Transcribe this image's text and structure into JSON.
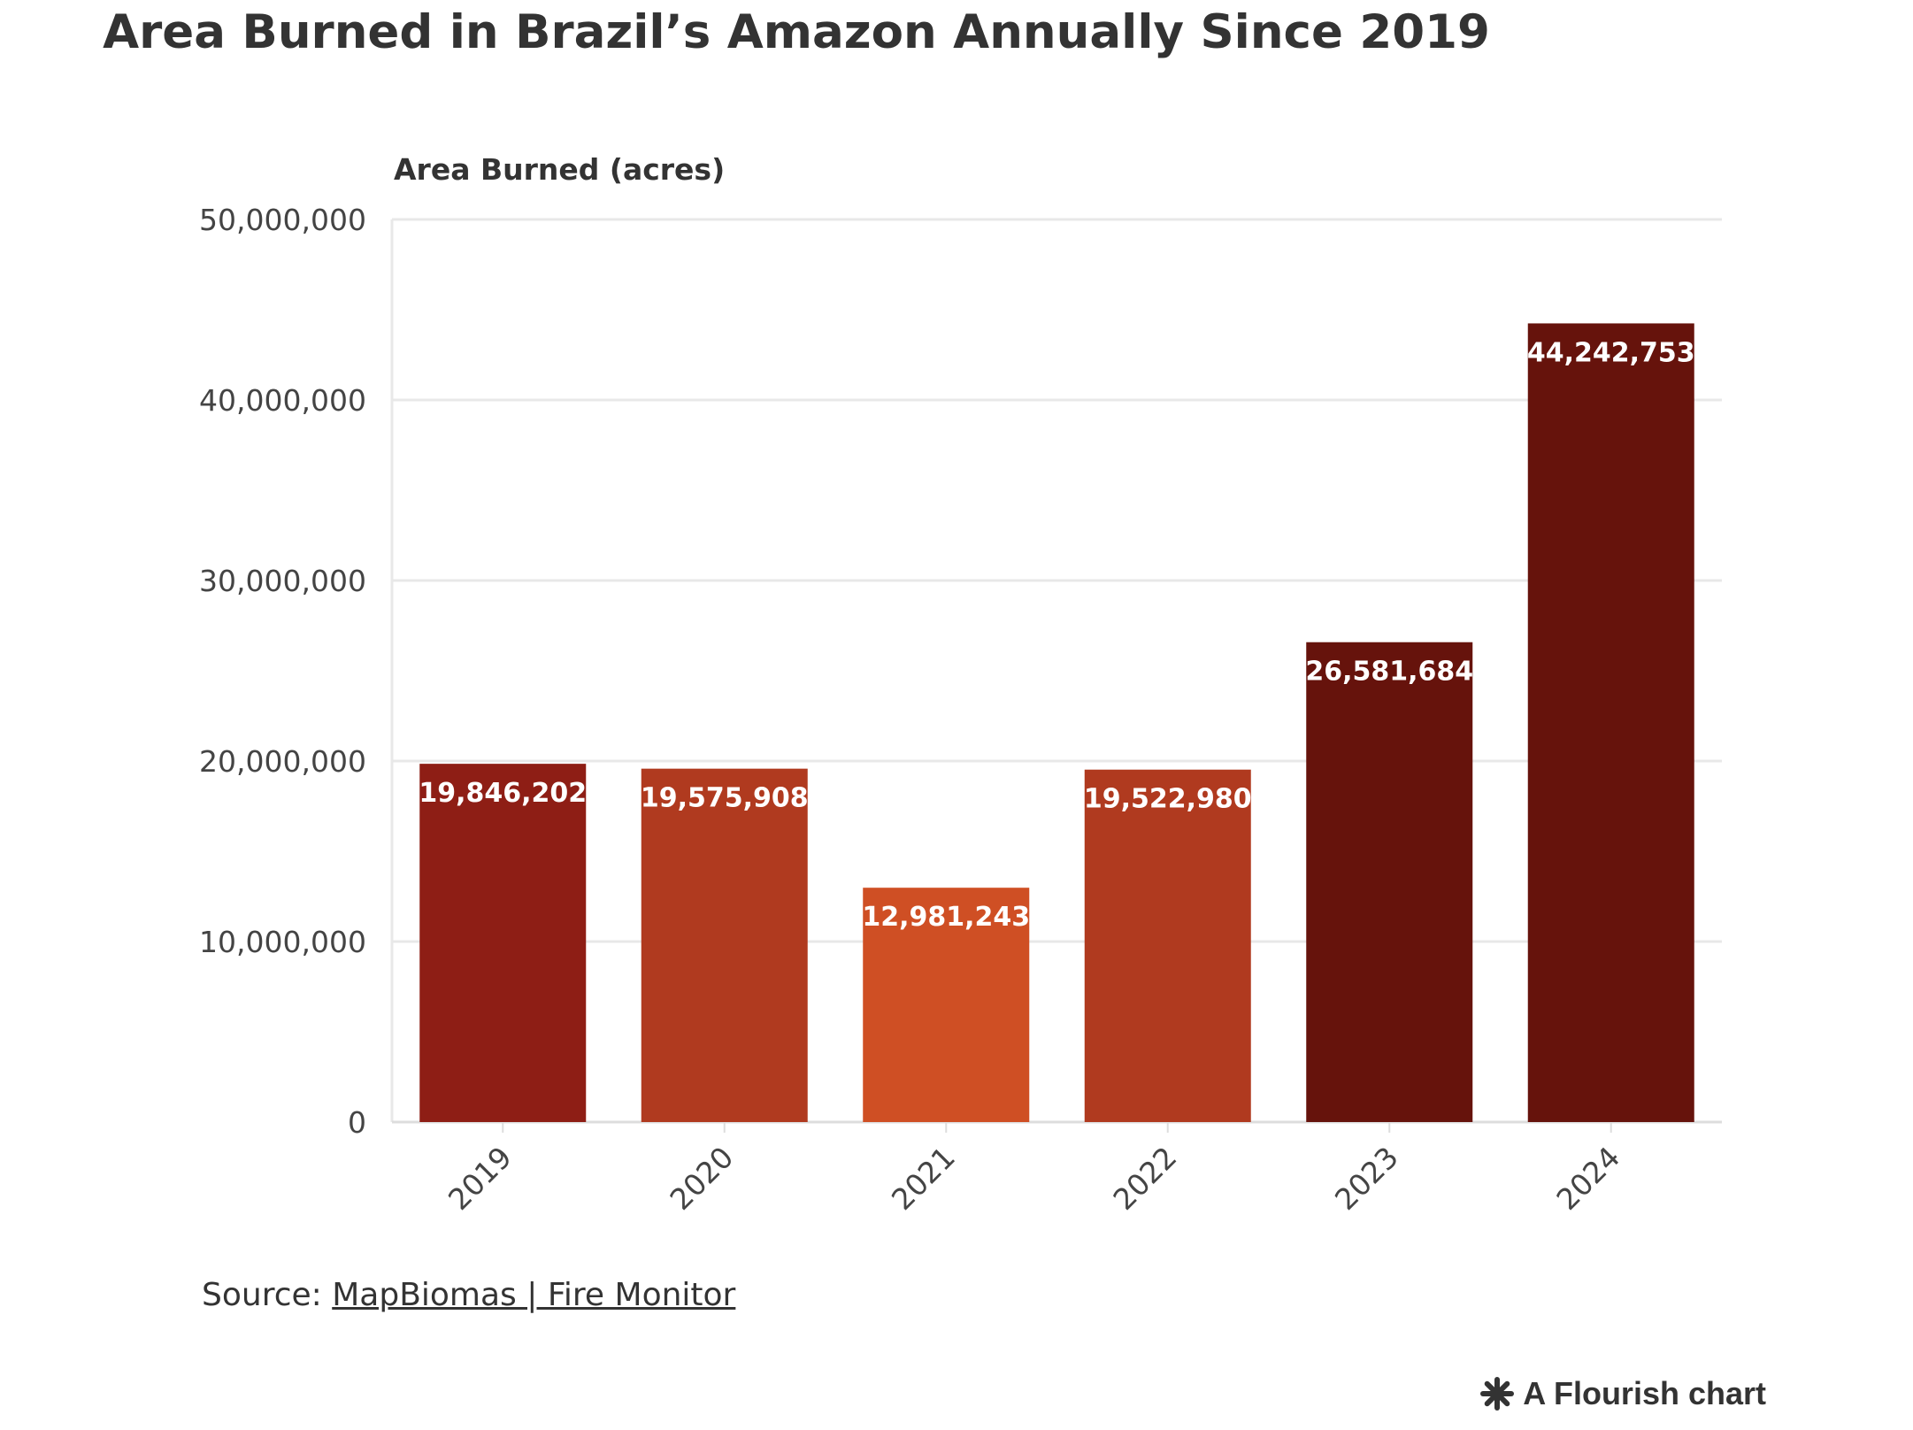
{
  "title": "Area Burned in Brazil’s Amazon Annually  Since 2019",
  "source_prefix": "Source: ",
  "source_link": "MapBiomas | Fire Monitor",
  "credit": "A Flourish chart",
  "chart_data": {
    "type": "bar",
    "title": "Area Burned in Brazil’s Amazon Annually  Since 2019",
    "xlabel": "",
    "ylabel": "Area Burned (acres)",
    "ylim": [
      0,
      50000000
    ],
    "yticks": [
      0,
      10000000,
      20000000,
      30000000,
      40000000,
      50000000
    ],
    "ytick_labels": [
      "0",
      "10,000,000",
      "20,000,000",
      "30,000,000",
      "40,000,000",
      "50,000,000"
    ],
    "categories": [
      "2019",
      "2020",
      "2021",
      "2022",
      "2023",
      "2024"
    ],
    "values": [
      19846202,
      19575908,
      12981243,
      19522980,
      26581684,
      44242753
    ],
    "value_labels": [
      "19,846,202",
      "19,575,908",
      "12,981,243",
      "19,522,980",
      "26,581,684",
      "44,242,753"
    ],
    "bar_colors": [
      "#8e1e15",
      "#b03a1f",
      "#cf4f24",
      "#b03a1f",
      "#66130c",
      "#66130c"
    ],
    "grid": true,
    "legend": "none"
  }
}
